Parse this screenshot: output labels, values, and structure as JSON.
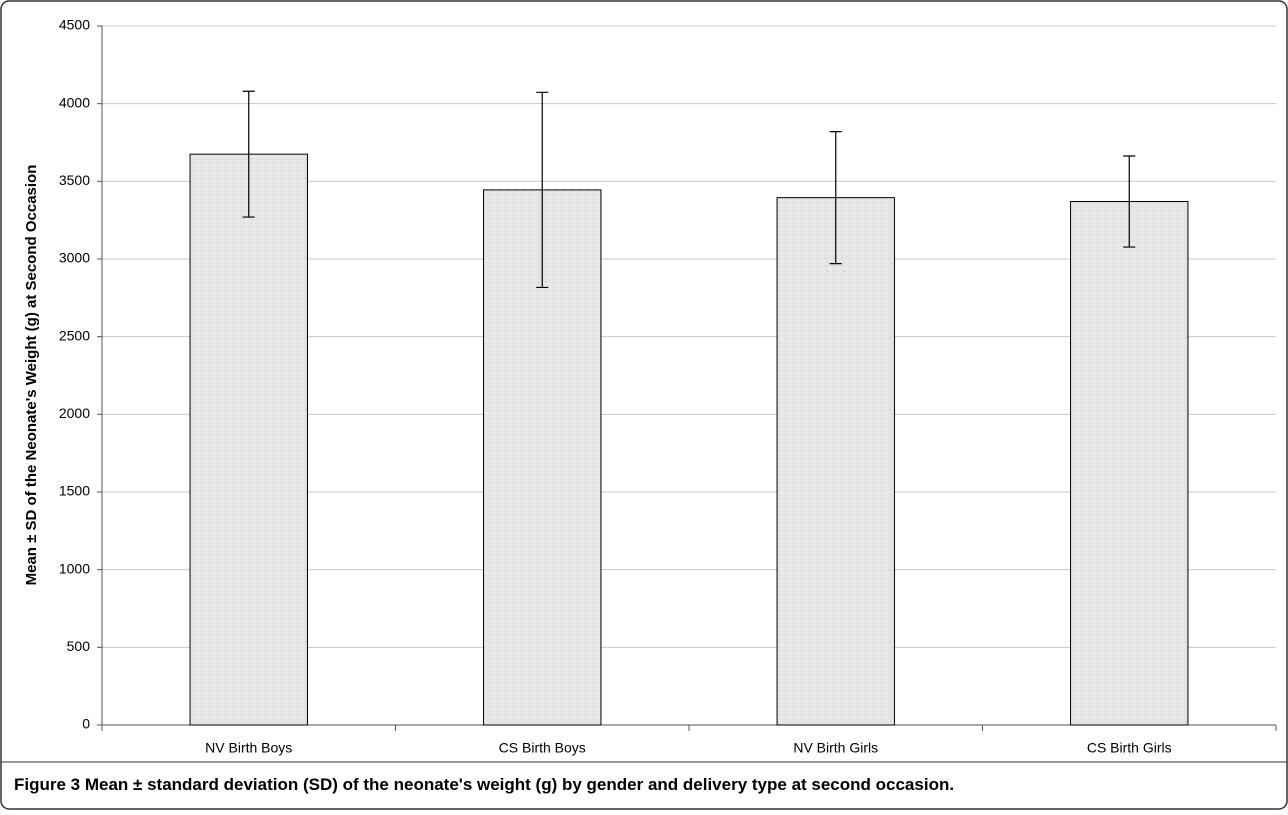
{
  "chart_data": {
    "type": "bar",
    "ylabel": "Mean ± SD of the Neonate's Weight (g) at Second Occasion",
    "categories": [
      "NV Birth Boys",
      "CS Birth Boys",
      "NV Birth Girls",
      "CS Birth Girls"
    ],
    "series": [
      {
        "color": "#e4e4e4",
        "values": [
          3675,
          3445,
          3395,
          3370
        ],
        "errors": [
          405,
          628,
          425,
          293
        ]
      }
    ],
    "ylim": [
      0,
      4500
    ],
    "yticks": [
      0,
      500,
      1000,
      1500,
      2000,
      2500,
      3000,
      3500,
      4000,
      4500
    ],
    "grid": true,
    "caption_label": "Figure 3",
    "caption": "Mean ± standard deviation (SD) of the neonate's weight (g) by gender and delivery type at second occasion."
  }
}
